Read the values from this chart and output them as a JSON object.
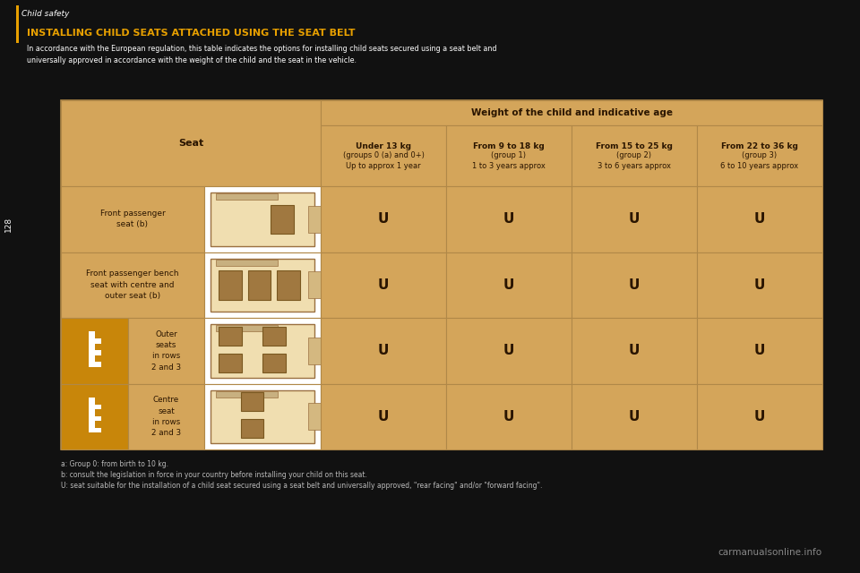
{
  "bg_color": "#111111",
  "header_bar_color": "#E8A000",
  "header_text": "Child safety",
  "page_number": "128",
  "title": "INSTALLING CHILD SEATS ATTACHED USING THE SEAT BELT",
  "subtitle": "In accordance with the European regulation, this table indicates the options for installing child seats secured using a seat belt and\nuniversally approved in accordance with the weight of the child and the seat in the vehicle.",
  "table_bg": "#D4A55A",
  "table_border_color": "#b08848",
  "icon_color": "#C8860A",
  "col_header_main": "Weight of the child and indicative age",
  "col_headers": [
    "Seat",
    "Under 13 kg\n(groups 0 (a) and 0+)\nUp to approx 1 year",
    "From 9 to 18 kg\n(group 1)\n1 to 3 years approx",
    "From 15 to 25 kg\n(group 2)\n3 to 6 years approx",
    "From 22 to 36 kg\n(group 3)\n6 to 10 years approx"
  ],
  "rows": [
    {
      "label": "Front passenger\nseat (b)",
      "has_icon": false,
      "values": [
        "U",
        "U",
        "U",
        "U"
      ]
    },
    {
      "label": "Front passenger bench\nseat with centre and\nouter seat (b)",
      "has_icon": false,
      "values": [
        "U",
        "U",
        "U",
        "U"
      ]
    },
    {
      "label": "Outer\nseats\nin rows\n2 and 3",
      "has_icon": true,
      "values": [
        "U",
        "U",
        "U",
        "U"
      ]
    },
    {
      "label": "Centre\nseat\nin rows\n2 and 3",
      "has_icon": true,
      "values": [
        "U",
        "U",
        "U",
        "U"
      ]
    }
  ],
  "footnotes": [
    "a: Group 0: from birth to 10 kg.",
    "b: consult the legislation in force in your country before installing your child on this seat.",
    "U: seat suitable for the installation of a child seat secured using a seat belt and universally approved, \"rear facing\" and/or \"forward facing\"."
  ],
  "watermark": "carmanualsonline.info"
}
